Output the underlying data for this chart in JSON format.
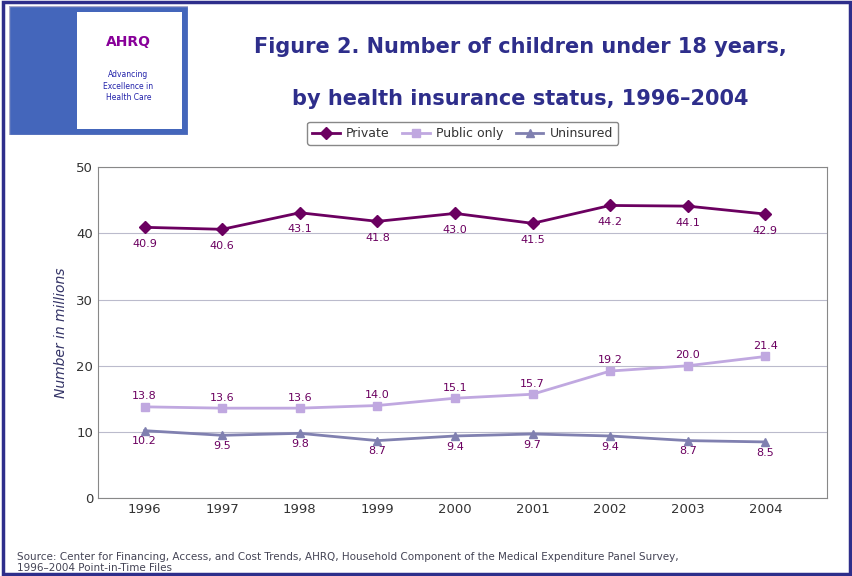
{
  "title_line1": "Figure 2. Number of children under 18 years,",
  "title_line2": "by health insurance status, 1996–2004",
  "title_color": "#2E2E8B",
  "years": [
    1996,
    1997,
    1998,
    1999,
    2000,
    2001,
    2002,
    2003,
    2004
  ],
  "private": [
    40.9,
    40.6,
    43.1,
    41.8,
    43.0,
    41.5,
    44.2,
    44.1,
    42.9
  ],
  "public_only": [
    13.8,
    13.6,
    13.6,
    14.0,
    15.1,
    15.7,
    19.2,
    20.0,
    21.4
  ],
  "uninsured": [
    10.2,
    9.5,
    9.8,
    8.7,
    9.4,
    9.7,
    9.4,
    8.7,
    8.5
  ],
  "private_color": "#6B0060",
  "public_color": "#C0A8E0",
  "uninsured_color": "#8080B0",
  "ylabel": "Number in millions",
  "ylim": [
    0,
    50
  ],
  "yticks": [
    0,
    10,
    20,
    30,
    40,
    50
  ],
  "source_text": "Source: Center for Financing, Access, and Cost Trends, AHRQ, Household Component of the Medical Expenditure Panel Survey,\n1996–2004 Point-in-Time Files",
  "background_color": "#FFFFFF",
  "header_bar_color": "#2E2E8B",
  "border_color": "#2E2E8B",
  "private_label": "Private",
  "public_label": "Public only",
  "uninsured_label": "Uninsured",
  "private_label_offsets": [
    -2.5,
    -2.5,
    -2.5,
    -2.5,
    -2.5,
    -2.5,
    -2.5,
    -2.5,
    -2.5
  ],
  "public_label_offsets": [
    1.6,
    1.6,
    1.6,
    1.6,
    1.6,
    1.6,
    1.6,
    1.6,
    1.6
  ],
  "uninsured_label_offsets": [
    -1.6,
    -1.6,
    -1.6,
    -1.6,
    -1.6,
    -1.6,
    -1.6,
    -1.6,
    -1.6
  ]
}
